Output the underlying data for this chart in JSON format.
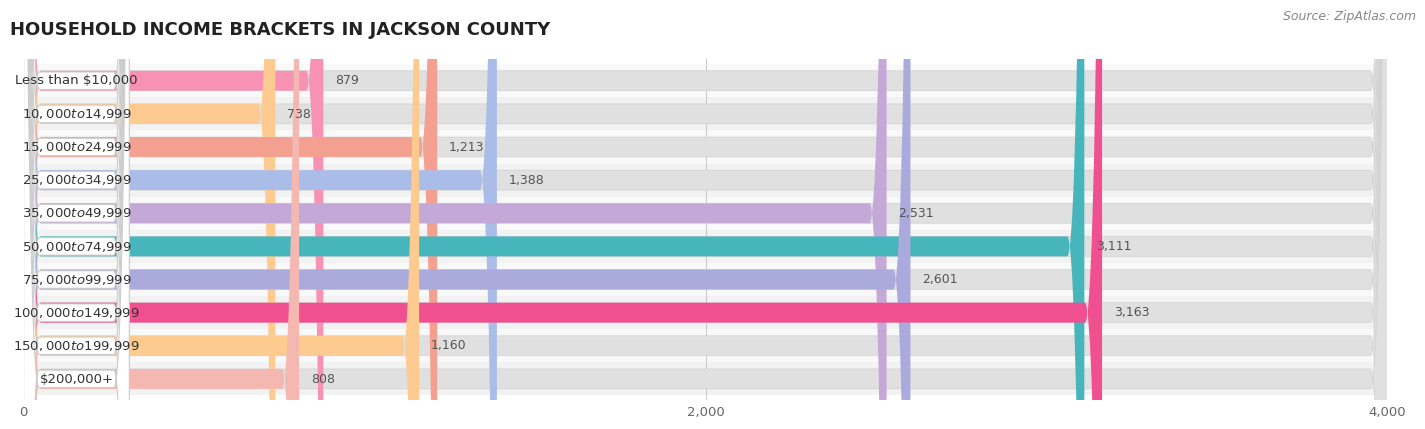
{
  "title": "HOUSEHOLD INCOME BRACKETS IN JACKSON COUNTY",
  "source": "Source: ZipAtlas.com",
  "categories": [
    "Less than $10,000",
    "$10,000 to $14,999",
    "$15,000 to $24,999",
    "$25,000 to $34,999",
    "$35,000 to $49,999",
    "$50,000 to $74,999",
    "$75,000 to $99,999",
    "$100,000 to $149,999",
    "$150,000 to $199,999",
    "$200,000+"
  ],
  "values": [
    879,
    738,
    1213,
    1388,
    2531,
    3111,
    2601,
    3163,
    1160,
    808
  ],
  "bar_colors": [
    "#F892B4",
    "#FDCA90",
    "#F4A090",
    "#AABCE8",
    "#C3A8D8",
    "#47B5BC",
    "#AAAADD",
    "#F05090",
    "#FDCA90",
    "#F4B8B0"
  ],
  "label_pill_colors": [
    "#F892B4",
    "#FDCA90",
    "#F4A090",
    "#AABCE8",
    "#C3A8D8",
    "#47B5BC",
    "#AAAADD",
    "#F05090",
    "#FDCA90",
    "#F4B8B0"
  ],
  "bg_bar_color": "#ebebeb",
  "xlim": [
    0,
    4000
  ],
  "xticks": [
    0,
    2000,
    4000
  ],
  "background_color": "#ffffff",
  "row_bg_color": "#f5f5f5",
  "title_fontsize": 13,
  "label_fontsize": 9.5,
  "value_fontsize": 9,
  "source_fontsize": 9
}
